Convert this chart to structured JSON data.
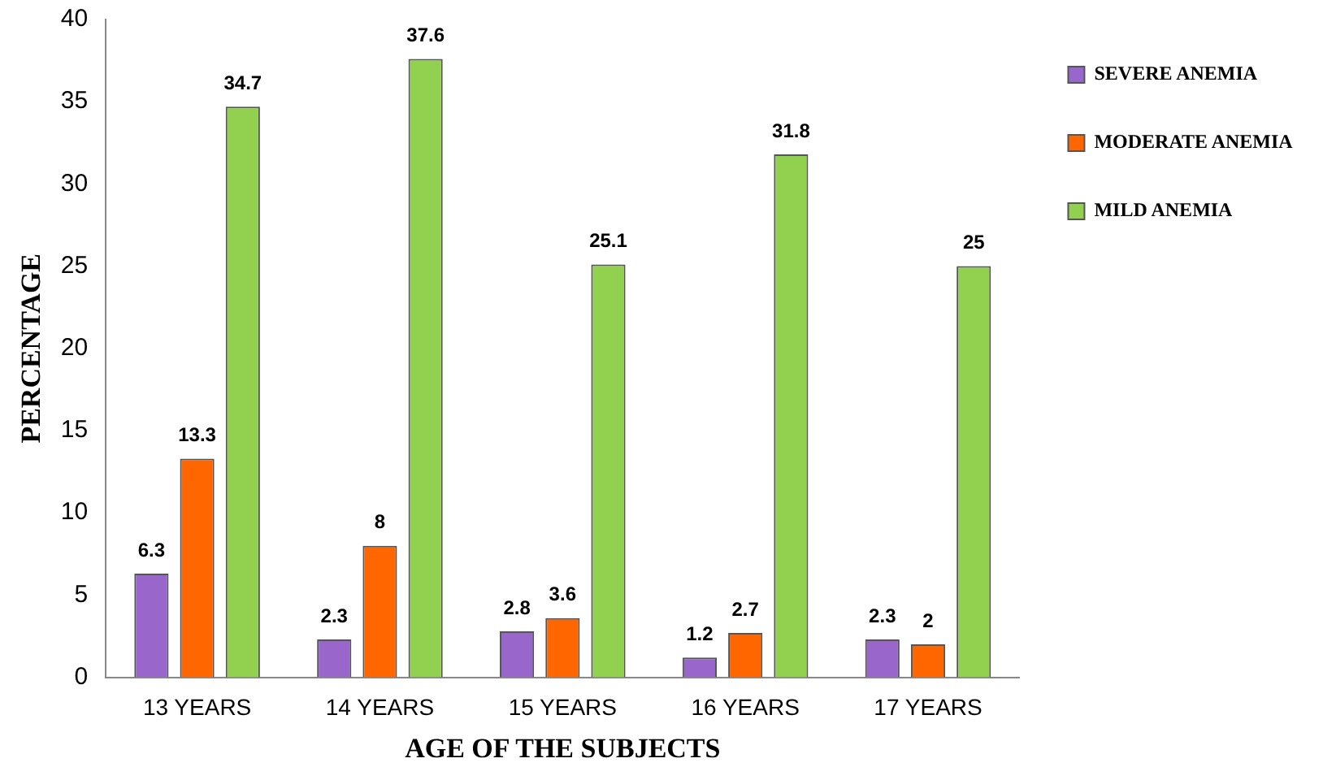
{
  "chart_data": {
    "type": "bar",
    "xlabel": "AGE OF THE SUBJECTS",
    "ylabel": "PERCENTAGE",
    "categories": [
      "13 YEARS",
      "14 YEARS",
      "15 YEARS",
      "16 YEARS",
      "17 YEARS"
    ],
    "series": [
      {
        "name": "SEVERE ANEMIA",
        "color": "#9966cc",
        "values": [
          6.3,
          2.3,
          2.8,
          1.2,
          2.3
        ]
      },
      {
        "name": "MODERATE ANEMIA",
        "color": "#ff6600",
        "values": [
          13.3,
          8,
          3.6,
          2.7,
          2
        ]
      },
      {
        "name": "MILD ANEMIA",
        "color": "#92d050",
        "values": [
          34.7,
          37.6,
          25.1,
          31.8,
          25
        ]
      }
    ],
    "ylim": [
      0,
      40
    ],
    "yticks": [
      0,
      5,
      10,
      15,
      20,
      25,
      30,
      35,
      40
    ],
    "grid": false,
    "legend": "top right",
    "data_labels": true
  }
}
